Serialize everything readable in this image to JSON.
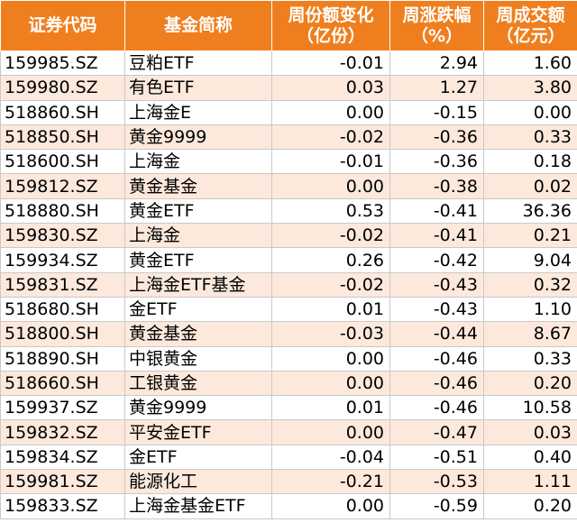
{
  "header": {
    "code": [
      "证券代码"
    ],
    "name": [
      "基金简称"
    ],
    "share_change": [
      "周份额变化",
      "（亿份）"
    ],
    "price_change": [
      "周涨跌幅",
      "（%）"
    ],
    "turnover": [
      "周成交额",
      "（亿元）"
    ]
  },
  "colors": {
    "header_bg": "#ef7f1e",
    "header_text": "#ffffff",
    "stripe": "#fce9dc"
  },
  "rows": [
    {
      "code": "159985.SZ",
      "name": "豆粕ETF",
      "share_change": "-0.01",
      "price_change": "2.94",
      "turnover": "1.60"
    },
    {
      "code": "159980.SZ",
      "name": "有色ETF",
      "share_change": "0.03",
      "price_change": "1.27",
      "turnover": "3.80"
    },
    {
      "code": "518860.SH",
      "name": "上海金E",
      "share_change": "0.00",
      "price_change": "-0.15",
      "turnover": "0.00"
    },
    {
      "code": "518850.SH",
      "name": "黄金9999",
      "share_change": "-0.02",
      "price_change": "-0.36",
      "turnover": "0.33"
    },
    {
      "code": "518600.SH",
      "name": "上海金",
      "share_change": "-0.01",
      "price_change": "-0.36",
      "turnover": "0.18"
    },
    {
      "code": "159812.SZ",
      "name": "黄金基金",
      "share_change": "0.00",
      "price_change": "-0.38",
      "turnover": "0.02"
    },
    {
      "code": "518880.SH",
      "name": "黄金ETF",
      "share_change": "0.53",
      "price_change": "-0.41",
      "turnover": "36.36"
    },
    {
      "code": "159830.SZ",
      "name": "上海金",
      "share_change": "-0.02",
      "price_change": "-0.41",
      "turnover": "0.21"
    },
    {
      "code": "159934.SZ",
      "name": "黄金ETF",
      "share_change": "0.26",
      "price_change": "-0.42",
      "turnover": "9.04"
    },
    {
      "code": "159831.SZ",
      "name": "上海金ETF基金",
      "share_change": "-0.02",
      "price_change": "-0.43",
      "turnover": "0.32"
    },
    {
      "code": "518680.SH",
      "name": "金ETF",
      "share_change": "0.01",
      "price_change": "-0.43",
      "turnover": "1.10"
    },
    {
      "code": "518800.SH",
      "name": "黄金基金",
      "share_change": "-0.03",
      "price_change": "-0.44",
      "turnover": "8.67"
    },
    {
      "code": "518890.SH",
      "name": "中银黄金",
      "share_change": "0.00",
      "price_change": "-0.46",
      "turnover": "0.33"
    },
    {
      "code": "518660.SH",
      "name": "工银黄金",
      "share_change": "0.00",
      "price_change": "-0.46",
      "turnover": "0.20"
    },
    {
      "code": "159937.SZ",
      "name": "黄金9999",
      "share_change": "0.01",
      "price_change": "-0.46",
      "turnover": "10.58"
    },
    {
      "code": "159832.SZ",
      "name": "平安金ETF",
      "share_change": "0.00",
      "price_change": "-0.47",
      "turnover": "0.03"
    },
    {
      "code": "159834.SZ",
      "name": "金ETF",
      "share_change": "-0.04",
      "price_change": "-0.51",
      "turnover": "0.40"
    },
    {
      "code": "159981.SZ",
      "name": "能源化工",
      "share_change": "-0.21",
      "price_change": "-0.53",
      "turnover": "1.11"
    },
    {
      "code": "159833.SZ",
      "name": "上海金基金ETF",
      "share_change": "0.00",
      "price_change": "-0.59",
      "turnover": "0.20"
    }
  ]
}
